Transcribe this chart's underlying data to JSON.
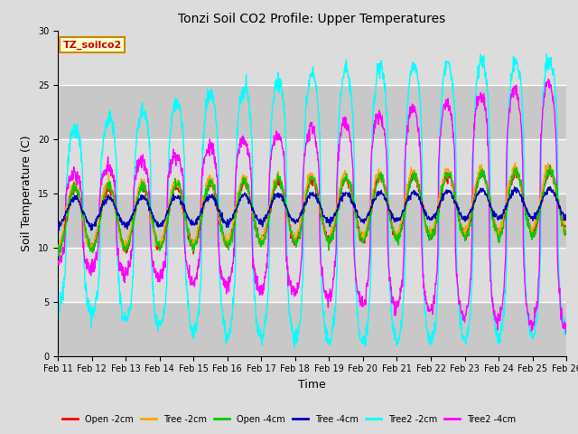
{
  "title": "Tonzi Soil CO2 Profile: Upper Temperatures",
  "xlabel": "Time",
  "ylabel": "Soil Temperature (C)",
  "watermark": "TZ_soilco2",
  "ylim": [
    0,
    30
  ],
  "yticks": [
    0,
    5,
    10,
    15,
    20,
    25,
    30
  ],
  "bg_light": "#dcdcdc",
  "bg_dark": "#c8c8c8",
  "series": [
    {
      "label": "Open -2cm",
      "color": "#ff0000"
    },
    {
      "label": "Tree -2cm",
      "color": "#ffa500"
    },
    {
      "label": "Open -4cm",
      "color": "#00cc00"
    },
    {
      "label": "Tree -4cm",
      "color": "#0000bb"
    },
    {
      "label": "Tree2 -2cm",
      "color": "#00ffff"
    },
    {
      "label": "Tree2 -4cm",
      "color": "#ff00ff"
    }
  ],
  "n_days": 15,
  "start_day": 11,
  "ppd": 96,
  "figsize": [
    6.4,
    4.8
  ],
  "dpi": 100
}
